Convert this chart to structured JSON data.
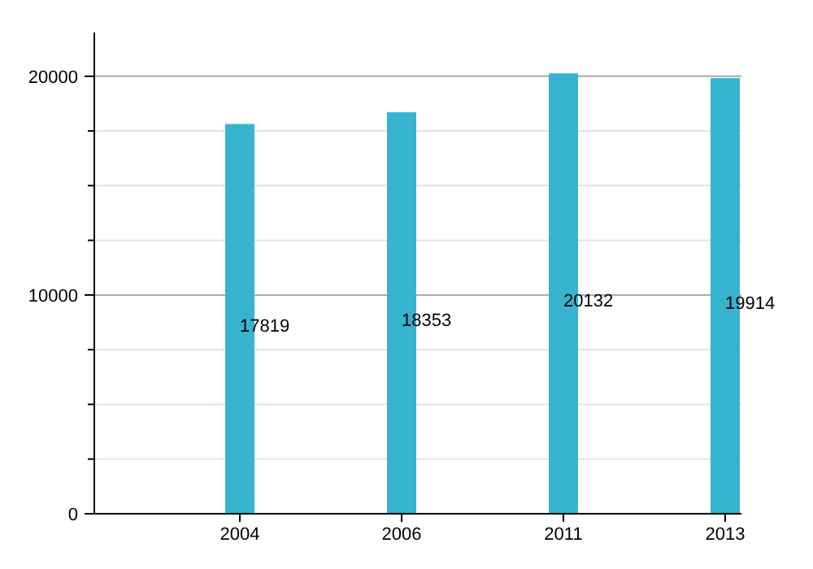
{
  "chart_data": {
    "type": "bar",
    "categories": [
      "2004",
      "2006",
      "2011",
      "2013"
    ],
    "values": [
      17819,
      18353,
      20132,
      19914
    ],
    "color": "#35b3cf",
    "ylim": [
      0,
      22000
    ],
    "yticks": [
      0,
      {
        "value": 2500,
        "label": null
      },
      {
        "value": 5000,
        "label": null
      },
      {
        "value": 7500,
        "label": null
      },
      10000,
      {
        "value": 12500,
        "label": null
      },
      {
        "value": 15000,
        "label": null
      },
      {
        "value": 17500,
        "label": null
      },
      20000
    ],
    "grid": "y",
    "data_labels": true
  }
}
